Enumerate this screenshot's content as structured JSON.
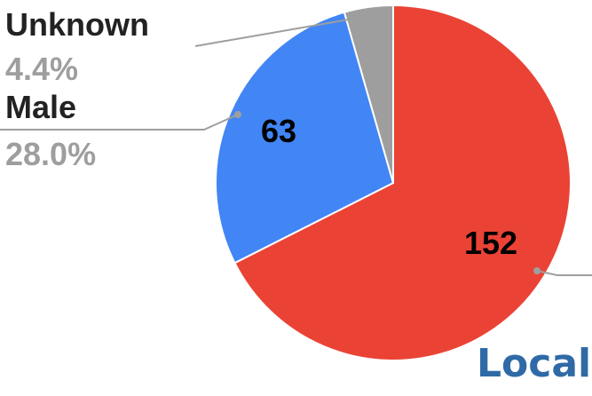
{
  "chart_data": {
    "type": "pie",
    "slices": [
      {
        "label": "",
        "value": 152,
        "value_label": "152",
        "percent_label": "",
        "color": "#ea4335"
      },
      {
        "label": "Male",
        "value": 63,
        "value_label": "63",
        "percent_label": "28.0%",
        "color": "#4285f4"
      },
      {
        "label": "Unknown",
        "value": 10,
        "value_label": "",
        "percent_label": "4.4%",
        "color": "#9e9e9e"
      }
    ],
    "start_angle_deg": 0,
    "direction": "clockwise",
    "legend": "callout labels with leader lines"
  },
  "caption": {
    "text": "Local"
  }
}
